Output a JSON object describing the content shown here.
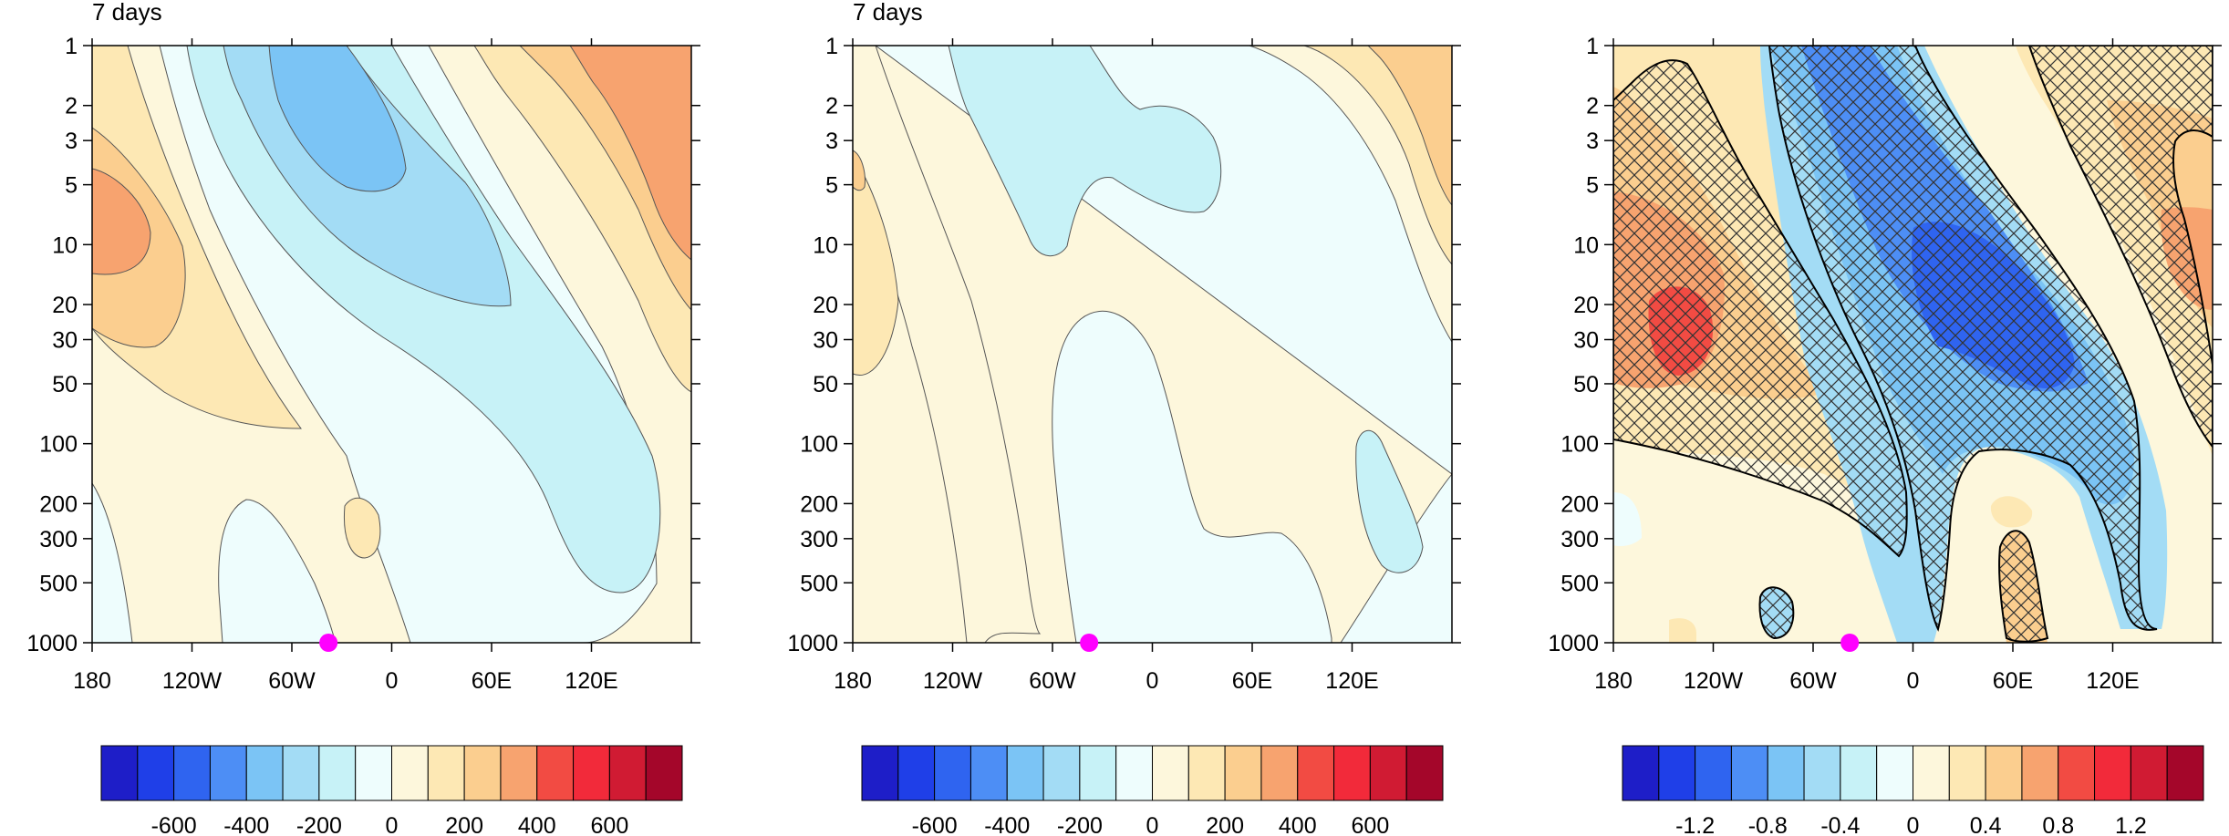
{
  "chart_data": [
    {
      "type": "heatmap",
      "title": "7 days",
      "x_ticks": [
        "180",
        "120W",
        "60W",
        "0",
        "60E",
        "120E"
      ],
      "y_ticks": [
        "1",
        "2",
        "3",
        "5",
        "10",
        "20",
        "30",
        "50",
        "100",
        "200",
        "300",
        "500",
        "1000"
      ],
      "y_scale": "log",
      "ylim": [
        1000,
        1
      ],
      "marker": {
        "lon": -38,
        "level": 1000,
        "color": "#ff00ff"
      },
      "colorbar": {
        "labels": [
          "-600",
          "-400",
          "-200",
          "0",
          "200",
          "400",
          "600"
        ],
        "colors": [
          "#1e1ec8",
          "#1f3fe8",
          "#2f64f0",
          "#4d8ef5",
          "#7bc4f5",
          "#a3dcf5",
          "#c7f2f7",
          "#eefdfd",
          "#fdf7dc",
          "#fde8b4",
          "#fbce8f",
          "#f7a36f",
          "#f24b43",
          "#f22a3a",
          "#d01b33",
          "#a4062a"
        ]
      },
      "hatched": false
    },
    {
      "type": "heatmap",
      "title": "7 days",
      "x_ticks": [
        "180",
        "120W",
        "60W",
        "0",
        "60E",
        "120E"
      ],
      "y_ticks": [
        "1",
        "2",
        "3",
        "5",
        "10",
        "20",
        "30",
        "50",
        "100",
        "200",
        "300",
        "500",
        "1000"
      ],
      "y_scale": "log",
      "ylim": [
        1000,
        1
      ],
      "marker": {
        "lon": -38,
        "level": 1000,
        "color": "#ff00ff"
      },
      "colorbar": {
        "labels": [
          "-600",
          "-400",
          "-200",
          "0",
          "200",
          "400",
          "600"
        ],
        "colors": [
          "#1e1ec8",
          "#1f3fe8",
          "#2f64f0",
          "#4d8ef5",
          "#7bc4f5",
          "#a3dcf5",
          "#c7f2f7",
          "#eefdfd",
          "#fdf7dc",
          "#fde8b4",
          "#fbce8f",
          "#f7a36f",
          "#f24b43",
          "#f22a3a",
          "#d01b33",
          "#a4062a"
        ]
      },
      "hatched": false
    },
    {
      "type": "heatmap",
      "title": "",
      "x_ticks": [
        "180",
        "120W",
        "60W",
        "0",
        "60E",
        "120E"
      ],
      "y_ticks": [
        "1",
        "2",
        "3",
        "5",
        "10",
        "20",
        "30",
        "50",
        "100",
        "200",
        "300",
        "500",
        "1000"
      ],
      "y_scale": "log",
      "ylim": [
        1000,
        1
      ],
      "marker": {
        "lon": -38,
        "level": 1000,
        "color": "#ff00ff"
      },
      "colorbar": {
        "labels": [
          "-1.2",
          "-0.8",
          "-0.4",
          "0",
          "0.4",
          "0.8",
          "1.2"
        ],
        "colors": [
          "#1e1ec8",
          "#1f3fe8",
          "#2f64f0",
          "#4d8ef5",
          "#7bc4f5",
          "#a3dcf5",
          "#c7f2f7",
          "#eefdfd",
          "#fdf7dc",
          "#fde8b4",
          "#fbce8f",
          "#f7a36f",
          "#f24b43",
          "#f22a3a",
          "#d01b33",
          "#a4062a"
        ]
      },
      "hatched": true
    }
  ]
}
